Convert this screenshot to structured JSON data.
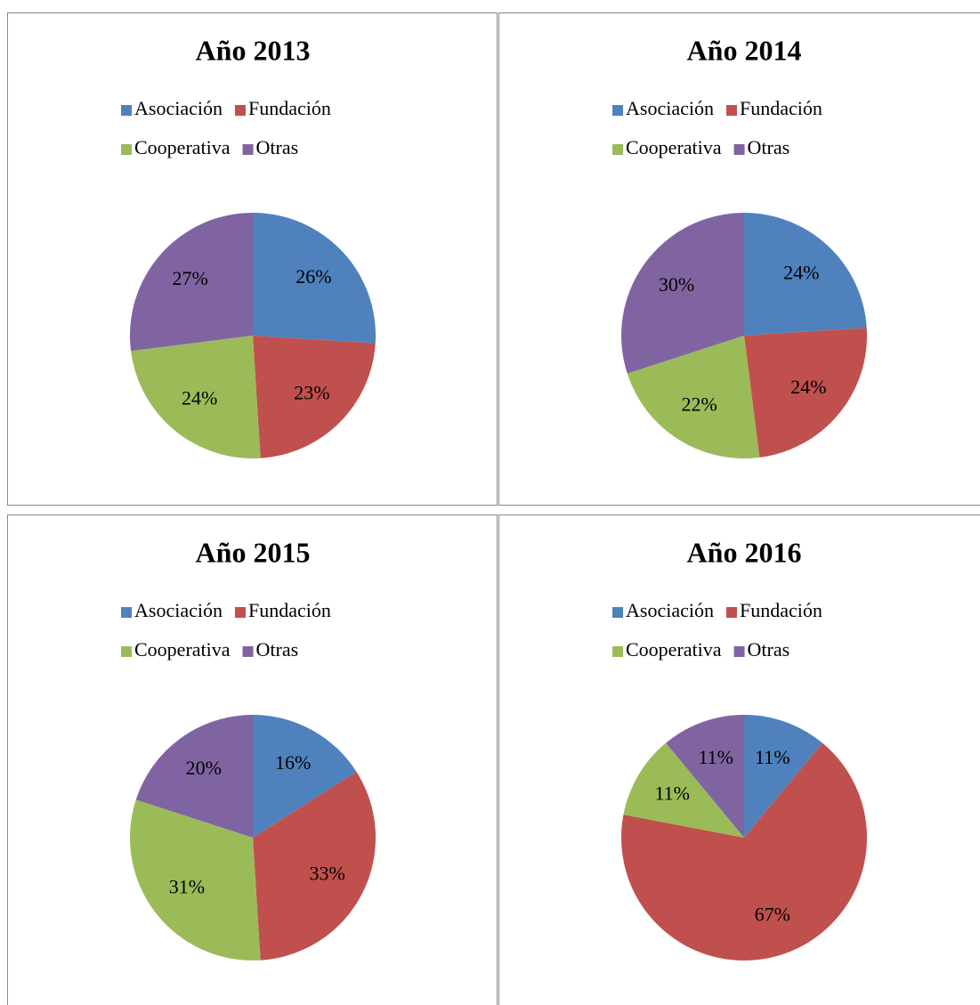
{
  "chart_data": [
    {
      "type": "pie",
      "title": "Año 2013",
      "categories": [
        "Asociación",
        "Fundación",
        "Cooperativa",
        "Otras"
      ],
      "colors": [
        "#4f81bd",
        "#c0504d",
        "#9bbb59",
        "#8064a2"
      ],
      "values": [
        26,
        23,
        24,
        27
      ],
      "value_labels": [
        "26%",
        "23%",
        "24%",
        "27%"
      ]
    },
    {
      "type": "pie",
      "title": "Año 2014",
      "categories": [
        "Asociación",
        "Fundación",
        "Cooperativa",
        "Otras"
      ],
      "colors": [
        "#4f81bd",
        "#c0504d",
        "#9bbb59",
        "#8064a2"
      ],
      "values": [
        24,
        24,
        22,
        30
      ],
      "value_labels": [
        "24%",
        "24%",
        "22%",
        "30%"
      ]
    },
    {
      "type": "pie",
      "title": "Año 2015",
      "categories": [
        "Asociación",
        "Fundación",
        "Cooperativa",
        "Otras"
      ],
      "colors": [
        "#4f81bd",
        "#c0504d",
        "#9bbb59",
        "#8064a2"
      ],
      "values": [
        16,
        33,
        31,
        20
      ],
      "value_labels": [
        "16%",
        "33%",
        "31%",
        "20%"
      ]
    },
    {
      "type": "pie",
      "title": "Año 2016",
      "categories": [
        "Asociación",
        "Fundación",
        "Cooperativa",
        "Otras"
      ],
      "colors": [
        "#4f81bd",
        "#c0504d",
        "#9bbb59",
        "#8064a2"
      ],
      "values": [
        11,
        67,
        11,
        11
      ],
      "value_labels": [
        "11%",
        "67%",
        "11%",
        "11%"
      ]
    }
  ]
}
